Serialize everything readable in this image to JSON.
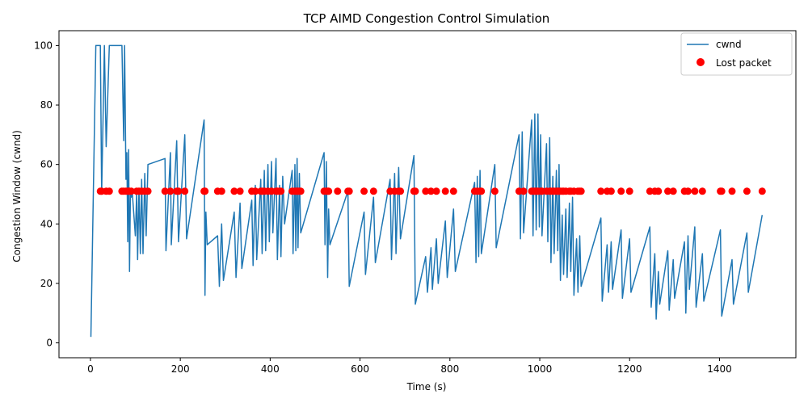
{
  "chart_data": {
    "type": "line",
    "title": "TCP AIMD Congestion Control Simulation",
    "xlabel": "Time (s)",
    "ylabel": "Congestion Window (cwnd)",
    "xlim": [
      -70,
      1570
    ],
    "ylim": [
      -5,
      105
    ],
    "x_ticks": [
      0,
      200,
      400,
      600,
      800,
      1000,
      1200,
      1400
    ],
    "y_ticks": [
      0,
      20,
      40,
      60,
      80,
      100
    ],
    "grid": false,
    "legend_position": "upper right",
    "legend": [
      "cwnd",
      "Lost packet"
    ],
    "lost_packet_y": 51,
    "series": [
      {
        "name": "cwnd",
        "kind": "line",
        "color": "#1f77b4",
        "x": [
          1,
          12,
          22,
          25,
          31,
          35,
          42,
          46,
          70,
          74,
          76,
          79,
          81,
          83,
          85,
          87,
          89,
          91,
          93,
          100,
          103,
          105,
          108,
          111,
          114,
          117,
          121,
          124,
          128,
          166,
          168,
          178,
          180,
          192,
          196,
          210,
          214,
          253,
          255,
          257,
          260,
          283,
          287,
          292,
          296,
          320,
          324,
          333,
          337,
          359,
          362,
          367,
          370,
          379,
          382,
          387,
          390,
          395,
          398,
          403,
          406,
          413,
          416,
          421,
          424,
          428,
          432,
          449,
          451,
          455,
          457,
          460,
          462,
          465,
          468,
          520,
          522,
          525,
          528,
          530,
          533,
          573,
          576,
          609,
          612,
          630,
          634,
          667,
          670,
          677,
          680,
          686,
          690,
          720,
          723,
          746,
          750,
          758,
          761,
          770,
          774,
          790,
          794,
          808,
          812,
          855,
          858,
          861,
          864,
          867,
          870,
          900,
          903,
          954,
          957,
          961,
          964,
          982,
          985,
          989,
          992,
          996,
          999,
          1002,
          1005,
          1015,
          1018,
          1022,
          1025,
          1029,
          1032,
          1037,
          1040,
          1043,
          1046,
          1050,
          1053,
          1058,
          1061,
          1066,
          1069,
          1073,
          1076,
          1082,
          1085,
          1089,
          1092,
          1136,
          1139,
          1150,
          1153,
          1159,
          1162,
          1181,
          1184,
          1200,
          1203,
          1245,
          1248,
          1256,
          1259,
          1264,
          1267,
          1285,
          1288,
          1297,
          1300,
          1322,
          1325,
          1330,
          1333,
          1345,
          1348,
          1362,
          1365,
          1402,
          1405,
          1428,
          1431,
          1461,
          1464,
          1495
        ],
        "y": [
          2,
          100,
          100,
          50,
          100,
          66,
          100,
          100,
          100,
          68,
          100,
          55,
          64,
          34,
          65,
          24,
          50,
          49,
          51,
          36,
          51,
          28,
          52,
          30,
          55,
          30,
          57,
          36,
          60,
          62,
          31,
          64,
          33,
          68,
          34,
          70,
          35,
          75,
          16,
          44,
          33,
          36,
          19,
          40,
          21,
          44,
          22,
          47,
          25,
          48,
          26,
          53,
          28,
          55,
          30,
          58,
          31,
          60,
          34,
          61,
          37,
          62,
          28,
          53,
          29,
          56,
          40,
          58,
          30,
          60,
          31,
          62,
          32,
          57,
          37,
          64,
          33,
          61,
          22,
          45,
          33,
          51,
          19,
          44,
          23,
          49,
          27,
          55,
          28,
          57,
          30,
          59,
          35,
          63,
          13,
          29,
          17,
          32,
          18,
          35,
          20,
          41,
          22,
          45,
          24,
          54,
          27,
          56,
          29,
          58,
          30,
          60,
          32,
          70,
          35,
          71,
          37,
          75,
          36,
          77,
          38,
          77,
          39,
          70,
          36,
          67,
          34,
          69,
          27,
          56,
          30,
          58,
          31,
          60,
          21,
          43,
          23,
          45,
          22,
          47,
          24,
          49,
          16,
          35,
          17,
          36,
          19,
          42,
          14,
          33,
          17,
          34,
          18,
          38,
          15,
          35,
          17,
          39,
          12,
          30,
          8,
          24,
          13,
          31,
          11,
          28,
          15,
          34,
          10,
          36,
          18,
          39,
          12,
          30,
          14,
          38,
          9,
          28,
          13,
          37,
          17,
          43
        ]
      },
      {
        "name": "Lost packet",
        "kind": "scatter",
        "color": "#ff0000",
        "x": [
          22,
          25,
          35,
          42,
          70,
          74,
          79,
          83,
          85,
          87,
          91,
          103,
          108,
          114,
          121,
          128,
          166,
          178,
          192,
          196,
          210,
          253,
          255,
          283,
          292,
          320,
          333,
          359,
          367,
          379,
          382,
          387,
          395,
          403,
          413,
          416,
          421,
          424,
          449,
          455,
          457,
          460,
          462,
          465,
          468,
          520,
          525,
          528,
          530,
          550,
          573,
          576,
          609,
          630,
          667,
          677,
          686,
          690,
          720,
          723,
          746,
          758,
          770,
          790,
          808,
          855,
          861,
          867,
          870,
          900,
          954,
          964,
          982,
          985,
          989,
          992,
          996,
          1002,
          1005,
          1015,
          1022,
          1025,
          1029,
          1032,
          1037,
          1040,
          1043,
          1046,
          1050,
          1053,
          1058,
          1066,
          1069,
          1076,
          1085,
          1089,
          1092,
          1136,
          1150,
          1159,
          1181,
          1200,
          1245,
          1256,
          1264,
          1285,
          1297,
          1322,
          1330,
          1345,
          1362,
          1402,
          1405,
          1428,
          1461,
          1495
        ]
      }
    ]
  }
}
